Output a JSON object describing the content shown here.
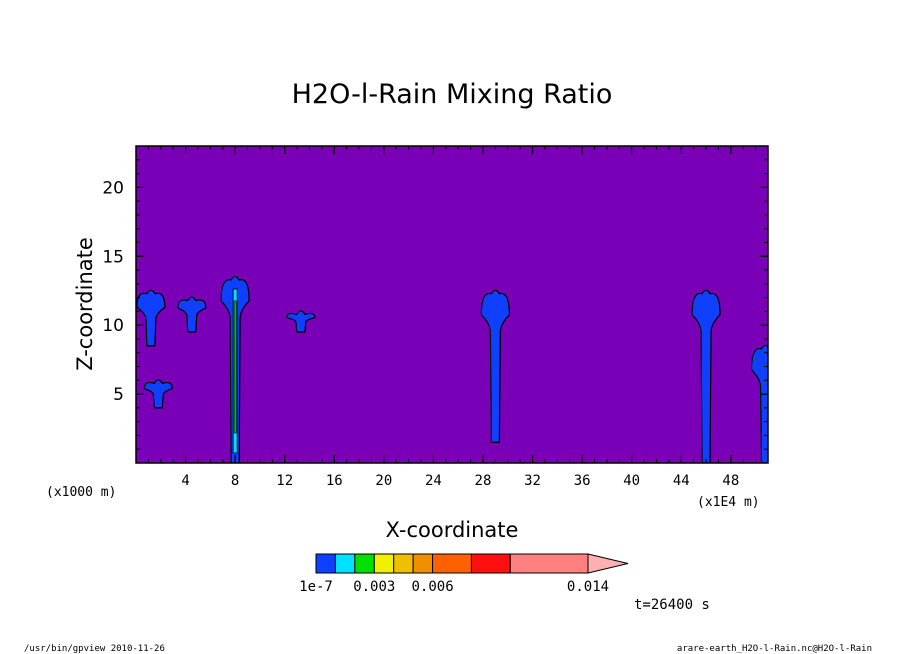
{
  "chart_data": {
    "type": "heatmap",
    "title": "H2O-l-Rain Mixing Ratio",
    "xlabel": "X-coordinate",
    "ylabel": "Z-coordinate",
    "x_unit_left": "(x1000 m)",
    "x_unit_right": "(x1E4 m)",
    "xlim": [
      0,
      51
    ],
    "ylim": [
      0,
      23
    ],
    "x_ticks": [
      4,
      8,
      12,
      16,
      20,
      24,
      28,
      32,
      36,
      40,
      44,
      48
    ],
    "y_ticks": [
      5,
      10,
      15,
      20
    ],
    "background_color": "#7a00b8",
    "colorbar": {
      "colors": [
        "#1040ff",
        "#00e0ff",
        "#00e000",
        "#f0f000",
        "#f0c000",
        "#f09000",
        "#ff6000",
        "#ff1010",
        "#ff8080",
        "#ffb0b0"
      ],
      "labels": [
        {
          "text": "1e-7",
          "value": 0
        },
        {
          "text": "0.003",
          "value": 0.003
        },
        {
          "text": "0.006",
          "value": 0.006
        },
        {
          "text": "0.014",
          "value": 0.014
        }
      ],
      "max": 0.015
    },
    "features": [
      {
        "x_center": 1.2,
        "z_top": 12.5,
        "z_bottom": 8.5,
        "level": 0
      },
      {
        "x_center": 1.8,
        "z_top": 6,
        "z_bottom": 4,
        "level": 0
      },
      {
        "x_center": 4.5,
        "z_top": 12,
        "z_bottom": 9.5,
        "level": 0
      },
      {
        "x_center": 8,
        "z_top": 13.5,
        "z_bottom": 0,
        "level": 2
      },
      {
        "x_center": 13.3,
        "z_top": 11,
        "z_bottom": 9.5,
        "level": 0
      },
      {
        "x_center": 29,
        "z_top": 12.5,
        "z_bottom": 1.5,
        "level": 0
      },
      {
        "x_center": 46,
        "z_top": 12.5,
        "z_bottom": 0,
        "level": 0
      },
      {
        "x_center": 50.8,
        "z_top": 8.5,
        "z_bottom": 0,
        "level": 0
      }
    ]
  },
  "time_label": "t=26400 s",
  "footer_left": "/usr/bin/gpview  2010-11-26",
  "footer_right": "arare-earth_H2O-l-Rain.nc@H2O-l-Rain"
}
